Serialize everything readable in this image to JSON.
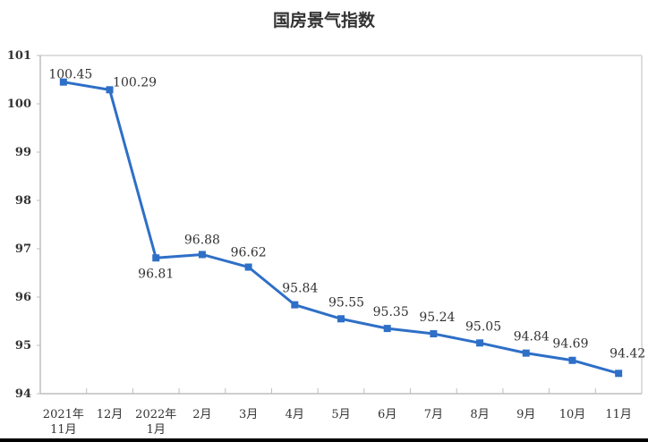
{
  "chart_data": {
    "type": "line",
    "title": "国房景气指数",
    "xlabel": "",
    "ylabel": "",
    "ylim": [
      94,
      101
    ],
    "yticks": [
      94,
      95,
      96,
      97,
      98,
      99,
      100,
      101
    ],
    "grid": false,
    "legend": null,
    "categories": [
      "2021年\n11月",
      "12月",
      "2022年\n1月",
      "2月",
      "3月",
      "4月",
      "5月",
      "6月",
      "7月",
      "8月",
      "9月",
      "10月",
      "11月"
    ],
    "series": [
      {
        "name": "国房景气指数",
        "color": "#2e6fc7",
        "values": [
          100.45,
          100.29,
          96.81,
          96.88,
          96.62,
          95.84,
          95.55,
          95.35,
          95.24,
          95.05,
          94.84,
          94.69,
          94.42
        ],
        "labels": [
          "100.45",
          "100.29",
          "96.81",
          "96.88",
          "96.62",
          "95.84",
          "95.55",
          "95.35",
          "95.24",
          "95.05",
          "94.84",
          "94.69",
          "94.42"
        ]
      }
    ]
  }
}
